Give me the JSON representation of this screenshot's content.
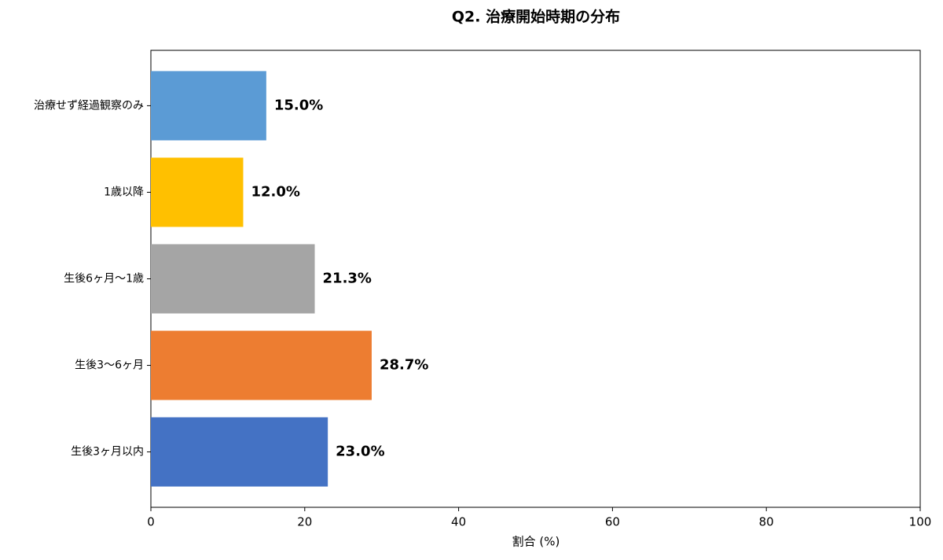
{
  "chart_data": {
    "type": "barh",
    "title": "Q2. 治療開始時期の分布",
    "xlabel": "割合 (%)",
    "categories": [
      "治療せず経過観察のみ",
      "1歳以降",
      "生後6ヶ月〜1歳",
      "生後3〜6ヶ月",
      "生後3ヶ月以内"
    ],
    "values": [
      15.0,
      12.0,
      21.3,
      28.7,
      23.0
    ],
    "value_labels": [
      "15.0%",
      "12.0%",
      "21.3%",
      "28.7%",
      "23.0%"
    ],
    "colors": [
      "#5b9bd5",
      "#ffc000",
      "#a5a5a5",
      "#ed7d31",
      "#4472c4"
    ],
    "xlim": [
      0,
      100
    ],
    "xticks": [
      0,
      20,
      40,
      60,
      80,
      100
    ],
    "grid": false
  }
}
